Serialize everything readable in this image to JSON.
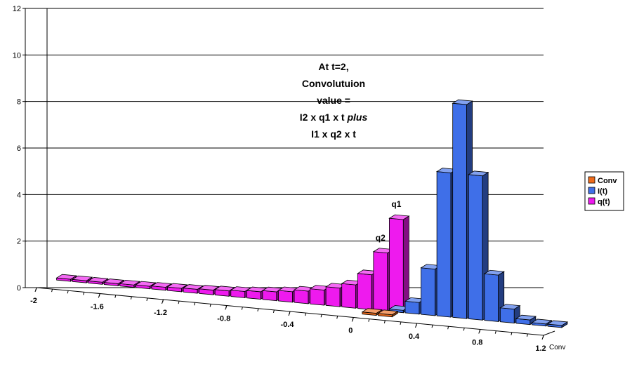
{
  "chart_data": {
    "type": "bar",
    "subtype": "3d-column",
    "x_ticks": [
      "-2",
      "-1.6",
      "-1.2",
      "-0.8",
      "-0.4",
      "0",
      "0.4",
      "0.8",
      "1.2"
    ],
    "y_ticks": [
      "0",
      "2",
      "4",
      "6",
      "8",
      "10",
      "12"
    ],
    "ylim": [
      0,
      12
    ],
    "grid": true,
    "depth_label": "Conv",
    "legend_position": "right",
    "series": [
      {
        "name": "Conv",
        "color": "#ee6a1a",
        "x": [
          0.1,
          0.2
        ],
        "values": [
          0.05,
          0.05
        ]
      },
      {
        "name": "I(t)",
        "color": "#3f6fe8",
        "x": [
          0.2,
          0.3,
          0.4,
          0.5,
          0.6,
          0.7,
          0.8,
          0.9,
          1.0,
          1.1,
          1.2
        ],
        "values": [
          0.1,
          0.5,
          2.0,
          6.2,
          9.2,
          6.2,
          2.0,
          0.6,
          0.2,
          0.08,
          0.03
        ]
      },
      {
        "name": "q(t)",
        "color": "#ee1aee",
        "x": [
          -1.9,
          -1.8,
          -1.7,
          -1.6,
          -1.5,
          -1.4,
          -1.3,
          -1.2,
          -1.1,
          -1.0,
          -0.9,
          -0.8,
          -0.7,
          -0.6,
          -0.5,
          -0.4,
          -0.3,
          -0.2,
          -0.1,
          0.0,
          0.1,
          0.2
        ],
        "values": [
          0.06,
          0.07,
          0.08,
          0.09,
          0.1,
          0.11,
          0.13,
          0.15,
          0.17,
          0.2,
          0.23,
          0.27,
          0.32,
          0.38,
          0.45,
          0.54,
          0.65,
          0.8,
          1.0,
          1.5,
          2.5,
          4.0
        ]
      }
    ],
    "annotations": [
      {
        "lines": [
          "At t=2,",
          "Convolutuion",
          "value =",
          "I2 x q1 x t plus",
          "I1 x q2 x t"
        ],
        "italic_word": "plus"
      },
      {
        "text": "q1"
      },
      {
        "text": "q2"
      }
    ]
  }
}
